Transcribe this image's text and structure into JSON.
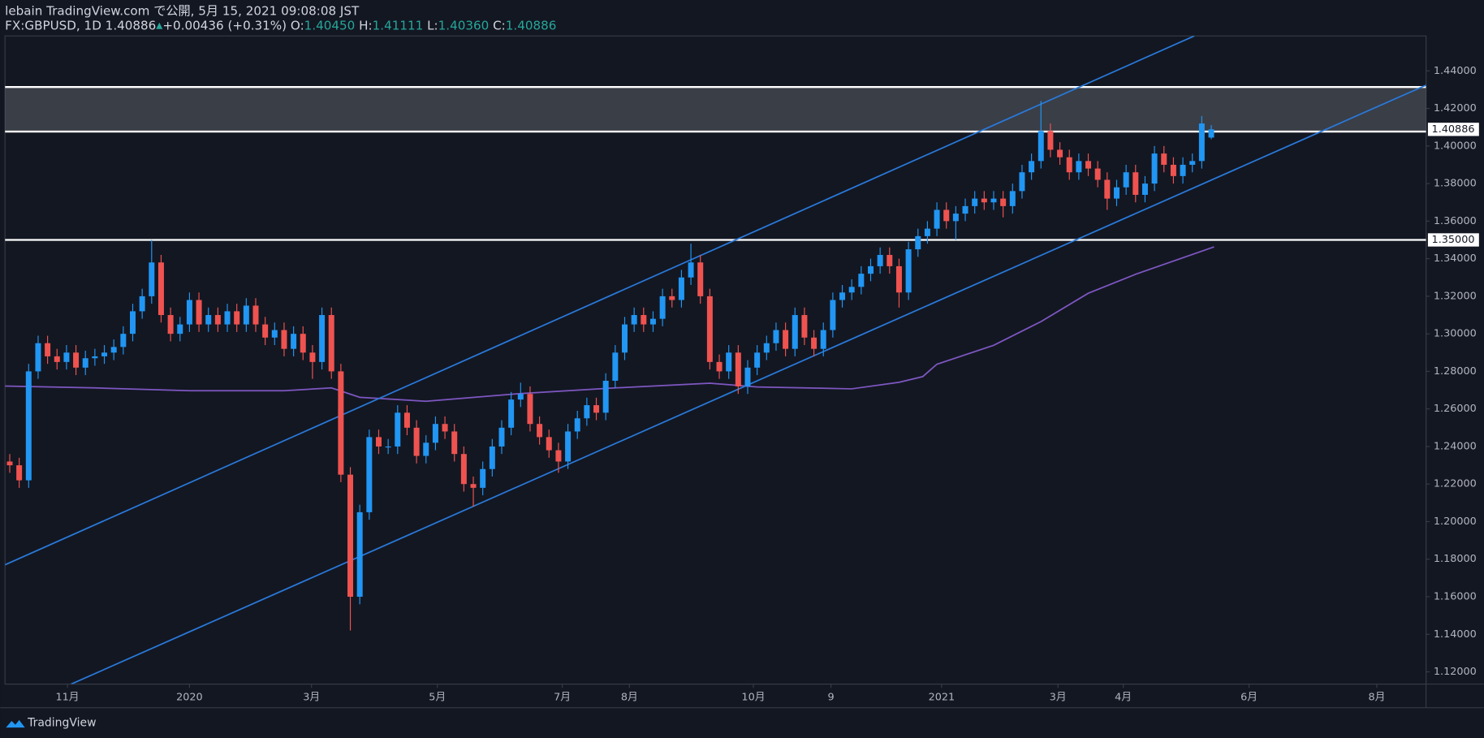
{
  "header": {
    "line1": "lebain TradingView.com で公開, 5月 15, 2021 09:08:08 JST",
    "symbol": "FX:GBPUSD, 1D",
    "last": "1.40886",
    "arrow": "▲",
    "change": "+0.00436 (+0.31%)",
    "o_label": "O:",
    "o": "1.40450",
    "h_label": "H:",
    "h": "1.41111",
    "l_label": "L:",
    "l": "1.40360",
    "c_label": "C:",
    "c": "1.40886"
  },
  "footer": {
    "brand": "TradingView"
  },
  "chart_data": {
    "type": "candlestick",
    "up_color": "#2196f3",
    "down_color": "#ef5350",
    "open": [
      1.232,
      1.23,
      1.222,
      1.28,
      1.295,
      1.288,
      1.285,
      1.29,
      1.282,
      1.287,
      1.288,
      1.29,
      1.293,
      1.3,
      1.312,
      1.32,
      1.338,
      1.31,
      1.3,
      1.305,
      1.318,
      1.305,
      1.31,
      1.305,
      1.312,
      1.305,
      1.315,
      1.305,
      1.298,
      1.302,
      1.292,
      1.3,
      1.29,
      1.285,
      1.31,
      1.28,
      1.225,
      1.16,
      1.205,
      1.245,
      1.24,
      1.24,
      1.258,
      1.25,
      1.235,
      1.242,
      1.252,
      1.248,
      1.236,
      1.22,
      1.218,
      1.228,
      1.24,
      1.25,
      1.265,
      1.268,
      1.252,
      1.245,
      1.238,
      1.232,
      1.248,
      1.255,
      1.262,
      1.258,
      1.275,
      1.29,
      1.305,
      1.31,
      1.305,
      1.308,
      1.32,
      1.318,
      1.33,
      1.338,
      1.32,
      1.285,
      1.28,
      1.29,
      1.272,
      1.282,
      1.29,
      1.295,
      1.302,
      1.292,
      1.31,
      1.298,
      1.292,
      1.302,
      1.318,
      1.322,
      1.325,
      1.332,
      1.336,
      1.342,
      1.336,
      1.322,
      1.345,
      1.352,
      1.356,
      1.366,
      1.36,
      1.364,
      1.368,
      1.372,
      1.37,
      1.372,
      1.368,
      1.376,
      1.386,
      1.392,
      1.408,
      1.398,
      1.394,
      1.386,
      1.392,
      1.388,
      1.382,
      1.372,
      1.378,
      1.386,
      1.374,
      1.38,
      1.396,
      1.39,
      1.384,
      1.39,
      1.392,
      1.4045
    ],
    "high": [
      1.236,
      1.234,
      1.284,
      1.299,
      1.299,
      1.292,
      1.294,
      1.294,
      1.291,
      1.292,
      1.294,
      1.297,
      1.304,
      1.316,
      1.324,
      1.35,
      1.342,
      1.314,
      1.309,
      1.322,
      1.322,
      1.314,
      1.314,
      1.316,
      1.316,
      1.319,
      1.319,
      1.309,
      1.306,
      1.306,
      1.304,
      1.304,
      1.294,
      1.314,
      1.314,
      1.284,
      1.229,
      1.209,
      1.249,
      1.249,
      1.244,
      1.262,
      1.262,
      1.254,
      1.246,
      1.256,
      1.256,
      1.252,
      1.24,
      1.224,
      1.232,
      1.244,
      1.254,
      1.269,
      1.274,
      1.272,
      1.256,
      1.249,
      1.242,
      1.252,
      1.259,
      1.266,
      1.266,
      1.279,
      1.294,
      1.309,
      1.314,
      1.314,
      1.312,
      1.324,
      1.324,
      1.334,
      1.348,
      1.342,
      1.324,
      1.289,
      1.294,
      1.294,
      1.286,
      1.294,
      1.299,
      1.306,
      1.306,
      1.314,
      1.314,
      1.302,
      1.306,
      1.322,
      1.326,
      1.329,
      1.336,
      1.34,
      1.346,
      1.346,
      1.34,
      1.349,
      1.356,
      1.36,
      1.37,
      1.37,
      1.368,
      1.372,
      1.376,
      1.376,
      1.376,
      1.376,
      1.38,
      1.39,
      1.396,
      1.424,
      1.412,
      1.402,
      1.398,
      1.396,
      1.396,
      1.392,
      1.386,
      1.382,
      1.39,
      1.39,
      1.384,
      1.4,
      1.4,
      1.394,
      1.394,
      1.396,
      1.416,
      1.41111
    ],
    "low": [
      1.226,
      1.218,
      1.218,
      1.276,
      1.284,
      1.281,
      1.281,
      1.278,
      1.278,
      1.283,
      1.284,
      1.286,
      1.289,
      1.296,
      1.308,
      1.316,
      1.306,
      1.296,
      1.296,
      1.301,
      1.301,
      1.301,
      1.301,
      1.301,
      1.301,
      1.301,
      1.301,
      1.294,
      1.294,
      1.288,
      1.288,
      1.286,
      1.276,
      1.281,
      1.276,
      1.221,
      1.142,
      1.156,
      1.201,
      1.236,
      1.236,
      1.236,
      1.246,
      1.231,
      1.231,
      1.238,
      1.244,
      1.232,
      1.216,
      1.208,
      1.214,
      1.224,
      1.236,
      1.246,
      1.261,
      1.248,
      1.241,
      1.234,
      1.226,
      1.228,
      1.244,
      1.251,
      1.254,
      1.254,
      1.271,
      1.286,
      1.301,
      1.301,
      1.301,
      1.304,
      1.314,
      1.314,
      1.326,
      1.316,
      1.281,
      1.276,
      1.276,
      1.268,
      1.268,
      1.278,
      1.286,
      1.291,
      1.288,
      1.288,
      1.294,
      1.288,
      1.288,
      1.298,
      1.314,
      1.318,
      1.321,
      1.328,
      1.332,
      1.332,
      1.314,
      1.318,
      1.341,
      1.348,
      1.352,
      1.356,
      1.35,
      1.36,
      1.364,
      1.366,
      1.366,
      1.362,
      1.364,
      1.372,
      1.382,
      1.388,
      1.394,
      1.39,
      1.382,
      1.382,
      1.384,
      1.378,
      1.366,
      1.368,
      1.374,
      1.37,
      1.37,
      1.376,
      1.386,
      1.38,
      1.38,
      1.386,
      1.388,
      1.4036
    ],
    "close": [
      1.23,
      1.222,
      1.28,
      1.295,
      1.288,
      1.285,
      1.29,
      1.282,
      1.287,
      1.288,
      1.29,
      1.293,
      1.3,
      1.312,
      1.32,
      1.338,
      1.31,
      1.3,
      1.305,
      1.318,
      1.305,
      1.31,
      1.305,
      1.312,
      1.305,
      1.315,
      1.305,
      1.298,
      1.302,
      1.292,
      1.3,
      1.29,
      1.285,
      1.31,
      1.28,
      1.225,
      1.16,
      1.205,
      1.245,
      1.24,
      1.24,
      1.258,
      1.25,
      1.235,
      1.242,
      1.252,
      1.248,
      1.236,
      1.22,
      1.218,
      1.228,
      1.24,
      1.25,
      1.265,
      1.268,
      1.252,
      1.245,
      1.238,
      1.232,
      1.248,
      1.255,
      1.262,
      1.258,
      1.275,
      1.29,
      1.305,
      1.31,
      1.305,
      1.308,
      1.32,
      1.318,
      1.33,
      1.338,
      1.32,
      1.285,
      1.28,
      1.29,
      1.272,
      1.282,
      1.29,
      1.295,
      1.302,
      1.292,
      1.31,
      1.298,
      1.292,
      1.302,
      1.318,
      1.322,
      1.325,
      1.332,
      1.336,
      1.342,
      1.336,
      1.322,
      1.345,
      1.352,
      1.356,
      1.366,
      1.36,
      1.364,
      1.368,
      1.372,
      1.37,
      1.372,
      1.368,
      1.376,
      1.386,
      1.392,
      1.408,
      1.398,
      1.394,
      1.386,
      1.392,
      1.388,
      1.382,
      1.372,
      1.378,
      1.386,
      1.374,
      1.38,
      1.396,
      1.39,
      1.384,
      1.39,
      1.392,
      1.412,
      1.40886
    ],
    "xlim": [
      -0.5,
      149.7
    ],
    "xticks": [
      {
        "value": 6.1,
        "label": "11月"
      },
      {
        "value": 19,
        "label": "2020"
      },
      {
        "value": 31.9,
        "label": "3月"
      },
      {
        "value": 45.2,
        "label": "5月"
      },
      {
        "value": 58.4,
        "label": "7月"
      },
      {
        "value": 65.5,
        "label": "8月"
      },
      {
        "value": 78.6,
        "label": "10月"
      },
      {
        "value": 86.8,
        "label": "9"
      },
      {
        "value": 98.5,
        "label": "2021"
      },
      {
        "value": 110.8,
        "label": "3月"
      },
      {
        "value": 117.7,
        "label": "4月"
      },
      {
        "value": 131,
        "label": "6月"
      },
      {
        "value": 144.5,
        "label": "8月"
      }
    ],
    "ylim": [
      1.1135,
      1.4586
    ],
    "yticks": [
      {
        "value": 1.12,
        "label": "1.12000"
      },
      {
        "value": 1.14,
        "label": "1.14000"
      },
      {
        "value": 1.16,
        "label": "1.16000"
      },
      {
        "value": 1.18,
        "label": "1.18000"
      },
      {
        "value": 1.2,
        "label": "1.20000"
      },
      {
        "value": 1.22,
        "label": "1.22000"
      },
      {
        "value": 1.24,
        "label": "1.24000"
      },
      {
        "value": 1.26,
        "label": "1.26000"
      },
      {
        "value": 1.28,
        "label": "1.28000"
      },
      {
        "value": 1.3,
        "label": "1.30000"
      },
      {
        "value": 1.32,
        "label": "1.32000"
      },
      {
        "value": 1.34,
        "label": "1.34000"
      },
      {
        "value": 1.36,
        "label": "1.36000"
      },
      {
        "value": 1.38,
        "label": "1.38000"
      },
      {
        "value": 1.4,
        "label": "1.40000"
      },
      {
        "value": 1.42,
        "label": "1.42000"
      },
      {
        "value": 1.44,
        "label": "1.44000"
      }
    ],
    "ma": {
      "color": "#7e57c2",
      "x": [
        -0.5,
        9,
        19,
        29,
        34,
        37,
        44,
        54,
        64,
        74,
        79,
        89,
        94,
        96.5,
        98,
        104,
        109,
        114,
        119,
        127.3
      ],
      "values": [
        1.2722,
        1.2712,
        1.2697,
        1.2697,
        1.2712,
        1.2662,
        1.2641,
        1.2682,
        1.2712,
        1.2737,
        1.2717,
        1.2707,
        1.2742,
        1.2772,
        1.2838,
        1.2939,
        1.3065,
        1.3216,
        1.3317,
        1.3463
      ]
    },
    "channel": {
      "color": "#2979d9",
      "lines": [
        {
          "x": [
            -0.5,
            125.2
          ],
          "values": [
            1.177,
            1.4586
          ]
        },
        {
          "x": [
            6.5,
            149.7
          ],
          "values": [
            1.1135,
            1.4324
          ]
        }
      ]
    },
    "zone": {
      "top": 1.4314,
      "bottom": 1.4077
    },
    "hlines": [
      {
        "value": 1.35,
        "label": "1.35000"
      }
    ],
    "last_price": {
      "value": 1.40886,
      "label": "1.40886"
    }
  }
}
